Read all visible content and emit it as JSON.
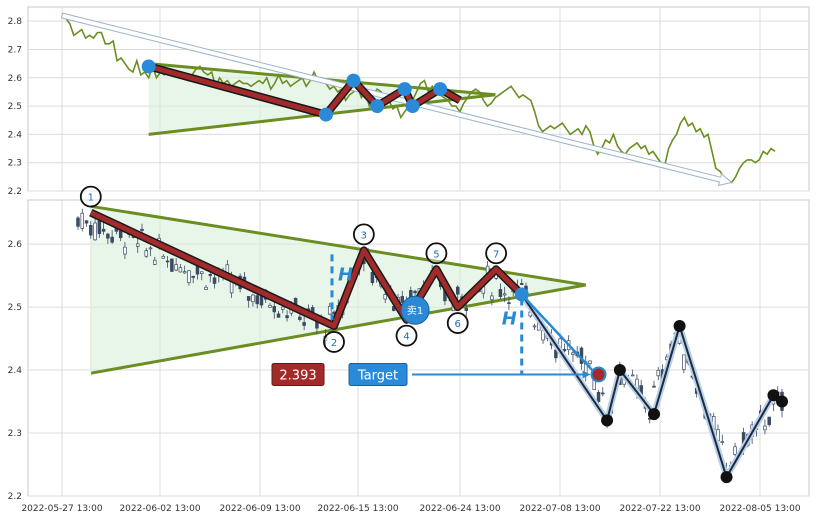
{
  "chart_data": [
    {
      "type": "line",
      "panel": "top",
      "ylim": [
        2.2,
        2.85
      ],
      "yticks": [
        "2.8",
        "2.7",
        "2.6",
        "2.5",
        "2.4",
        "2.3",
        "2.2"
      ],
      "grid": true,
      "series": [
        {
          "values": [
            2.82,
            2.81,
            2.79,
            2.75,
            2.76,
            2.77,
            2.74,
            2.75,
            2.74,
            2.76,
            2.76,
            2.72,
            2.72,
            2.73,
            2.66,
            2.67,
            2.65,
            2.63,
            2.62,
            2.66,
            2.61,
            2.62,
            2.6,
            2.64,
            2.6,
            2.62,
            2.61,
            2.63,
            2.61,
            2.62,
            2.62,
            2.6,
            2.59,
            2.61,
            2.63,
            2.64,
            2.62,
            2.61,
            2.62,
            2.57,
            2.6,
            2.58,
            2.59,
            2.57,
            2.58,
            2.59,
            2.58,
            2.58,
            2.57,
            2.58,
            2.59,
            2.58,
            2.6,
            2.56,
            2.58,
            2.61,
            2.58,
            2.59,
            2.57,
            2.58,
            2.59,
            2.6,
            2.57,
            2.59,
            2.62,
            2.59,
            2.6,
            2.58,
            2.56,
            2.57,
            2.55,
            2.56,
            2.52,
            2.54,
            2.55,
            2.57,
            2.53,
            2.55,
            2.5,
            2.54,
            2.56,
            2.55,
            2.51,
            2.52,
            2.49,
            2.5,
            2.46,
            2.48,
            2.5,
            2.52,
            2.55,
            2.58,
            2.59,
            2.55,
            2.57,
            2.55,
            2.54,
            2.53,
            2.52,
            2.5,
            2.5,
            2.48,
            2.51,
            2.53,
            2.55,
            2.56,
            2.55,
            2.52,
            2.5,
            2.51,
            2.53,
            2.54,
            2.55,
            2.56,
            2.57,
            2.55,
            2.53,
            2.54,
            2.53,
            2.52,
            2.48,
            2.43,
            2.41,
            2.42,
            2.43,
            2.42,
            2.43,
            2.44,
            2.42,
            2.4,
            2.41,
            2.42,
            2.4,
            2.43,
            2.41,
            2.36,
            2.33,
            2.35,
            2.38,
            2.37,
            2.4,
            2.36,
            2.34,
            2.33,
            2.35,
            2.36,
            2.37,
            2.35,
            2.36,
            2.33,
            2.34,
            2.32,
            2.3,
            2.29,
            2.35,
            2.38,
            2.4,
            2.44,
            2.46,
            2.43,
            2.44,
            2.41,
            2.42,
            2.39,
            2.4,
            2.34,
            2.28,
            2.27,
            2.25,
            2.24,
            2.23,
            2.25,
            2.28,
            2.3,
            2.31,
            2.31,
            2.3,
            2.31,
            2.34,
            2.33,
            2.35,
            2.34
          ],
          "color": "#6b8e23"
        }
      ],
      "pattern_points": [
        {
          "x": 22,
          "y": 2.64
        },
        {
          "x": 67,
          "y": 2.47
        },
        {
          "x": 74,
          "y": 2.59
        },
        {
          "x": 80,
          "y": 2.5
        },
        {
          "x": 87,
          "y": 2.56
        },
        {
          "x": 89,
          "y": 2.5
        },
        {
          "x": 96,
          "y": 2.56
        },
        {
          "x": 101,
          "y": 2.52
        }
      ],
      "triangle": {
        "upper": [
          [
            22,
            2.65
          ],
          [
            110,
            2.54
          ]
        ],
        "lower": [
          [
            22,
            2.4
          ],
          [
            110,
            2.54
          ]
        ]
      },
      "trend_arrow": [
        [
          0,
          2.82
        ],
        [
          170,
          2.23
        ]
      ],
      "trend_point_indices": [
        0,
        1,
        2,
        3,
        4,
        5,
        6
      ]
    },
    {
      "type": "candlestick",
      "panel": "bottom",
      "ylim": [
        2.2,
        2.67
      ],
      "yticks": [
        "2.6",
        "2.5",
        "2.4",
        "2.3",
        "2.2"
      ],
      "grid": true,
      "x_tick_labels": [
        "2022-05-27 13:00",
        "2022-06-02 13:00",
        "2022-06-09 13:00",
        "2022-06-15 13:00",
        "2022-06-24 13:00",
        "2022-07-08 13:00",
        "2022-07-22 13:00",
        "2022-08-05 13:00"
      ],
      "pattern_points": [
        {
          "label": "1",
          "x": 3,
          "y": 2.65
        },
        {
          "label": "2",
          "x": 60,
          "y": 2.47
        },
        {
          "label": "3",
          "x": 67,
          "y": 2.59
        },
        {
          "label": "4",
          "x": 77,
          "y": 2.48
        },
        {
          "label": "5",
          "x": 84,
          "y": 2.56
        },
        {
          "label": "6",
          "x": 89,
          "y": 2.5
        },
        {
          "label": "7",
          "x": 98,
          "y": 2.56
        }
      ],
      "triangle": {
        "upper": [
          [
            3,
            2.66
          ],
          [
            119,
            2.535
          ]
        ],
        "lower": [
          [
            3,
            2.395
          ],
          [
            119,
            2.535
          ]
        ]
      },
      "height_marker": "H",
      "sell_point": {
        "label": "卖1",
        "x": 79,
        "y": 2.495
      },
      "breakout_point": {
        "x": 104,
        "y": 2.52
      },
      "target": {
        "label": "Target",
        "value": "2.393",
        "y": 2.393,
        "x": 122
      },
      "projection_path": [
        [
          104,
          2.52
        ],
        [
          124,
          2.32
        ],
        [
          127,
          2.4
        ],
        [
          135,
          2.33
        ],
        [
          141,
          2.47
        ],
        [
          152,
          2.23
        ],
        [
          163,
          2.36
        ],
        [
          165,
          2.35
        ]
      ],
      "candles_generated": true
    }
  ]
}
